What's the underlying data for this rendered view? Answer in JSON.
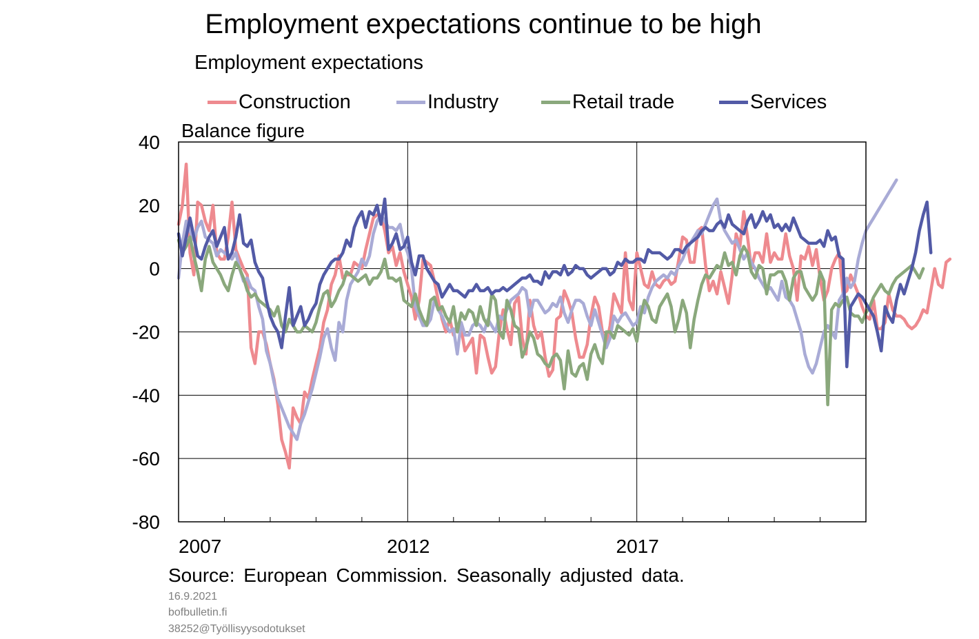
{
  "chart_data": {
    "type": "line",
    "title": "Employment expectations continue to be high",
    "subtitle": "Employment expectations",
    "ylabel": "Balance figure",
    "xlabel": "",
    "ylim": [
      -80,
      40
    ],
    "yticks": [
      40,
      20,
      0,
      -20,
      -40,
      -60,
      -80
    ],
    "xlim": [
      2007.0,
      2022.0
    ],
    "xticks_labeled": [
      {
        "value": 2007,
        "label": "2007"
      },
      {
        "value": 2012,
        "label": "2012"
      },
      {
        "value": 2017,
        "label": "2017"
      }
    ],
    "xticks_minor": [
      2008,
      2009,
      2010,
      2011,
      2013,
      2014,
      2015,
      2016,
      2018,
      2019,
      2020,
      2021
    ],
    "grid": {
      "horizontal": true,
      "vertical": true
    },
    "legend_position": "top",
    "frequency": "monthly",
    "x_start": "2007-01",
    "series": [
      {
        "name": "Construction",
        "color": "#ee8a8f",
        "values": [
          14,
          20,
          33,
          5,
          -2,
          21,
          20,
          15,
          12,
          20,
          5,
          3,
          3,
          10,
          21,
          6,
          3,
          0,
          -2,
          -25,
          -30,
          -20,
          -20,
          -24,
          -30,
          -35,
          -43,
          -54,
          -58,
          -63,
          -44,
          -47,
          -49,
          -39,
          -41,
          -35,
          -30,
          -25,
          -17,
          -13,
          -5,
          -2,
          4,
          -3,
          -2,
          -2,
          2,
          1,
          0,
          6,
          11,
          16,
          17,
          17,
          12,
          5,
          7,
          1,
          5,
          -1,
          -5,
          -9,
          -16,
          -10,
          3,
          2,
          1,
          -4,
          -10,
          -16,
          -20,
          -16,
          -21,
          -18,
          -19,
          -26,
          -24,
          -22,
          -33,
          -21,
          -22,
          -28,
          -33,
          -31,
          -20,
          -13,
          -19,
          -24,
          -11,
          -9,
          -22,
          -27,
          -10,
          -18,
          -22,
          -20,
          -28,
          -34,
          -32,
          -16,
          -15,
          -7,
          -10,
          -14,
          -22,
          -28,
          -28,
          -24,
          -15,
          -9,
          -12,
          -20,
          -24,
          -18,
          -8,
          -11,
          -14,
          5,
          -10,
          -13,
          5,
          0,
          -5,
          -6,
          -1,
          -5,
          -6,
          -4,
          -3,
          -5,
          -4,
          3,
          10,
          9,
          2,
          2,
          12,
          13,
          1,
          -7,
          -4,
          -8,
          -1,
          -6,
          -11,
          -2,
          11,
          7,
          18,
          10,
          0,
          5,
          5,
          2,
          11,
          2,
          5,
          3,
          3,
          11,
          4,
          0,
          -10,
          4,
          3,
          7,
          1,
          6,
          -3,
          -10,
          -7,
          0,
          3,
          5,
          -8,
          -7,
          -2,
          -5,
          -8,
          -12,
          -15,
          -16,
          -10,
          -19,
          -19,
          -17,
          -8,
          -13,
          -15,
          -15,
          -16,
          -18,
          -19,
          -18,
          -16,
          -13,
          -14,
          -7,
          0,
          -5,
          -6,
          2,
          3
        ]
      },
      {
        "name": "Industry",
        "color": "#a9abd6",
        "values": [
          -3,
          8,
          15,
          12,
          9,
          13,
          15,
          10,
          9,
          8,
          4,
          6,
          5,
          4,
          3,
          5,
          0,
          -4,
          -3,
          -6,
          -7,
          -12,
          -16,
          -26,
          -30,
          -36,
          -41,
          -44,
          -47,
          -50,
          -52,
          -54,
          -49,
          -46,
          -42,
          -38,
          -33,
          -28,
          -22,
          -19,
          -25,
          -29,
          -17,
          -20,
          -10,
          -5,
          -3,
          -1,
          3,
          1,
          4,
          11,
          15,
          17,
          15,
          13,
          13,
          12,
          14,
          8,
          5,
          0,
          -12,
          -15,
          -18,
          -18,
          -16,
          -10,
          -13,
          -15,
          -18,
          -20,
          -19,
          -27,
          -17,
          -21,
          -21,
          -18,
          -17,
          -18,
          -20,
          -16,
          -18,
          -20,
          -15,
          -16,
          -13,
          -10,
          -9,
          -8,
          -6,
          -7,
          -15,
          -10,
          -10,
          -12,
          -14,
          -13,
          -11,
          -12,
          -9,
          -14,
          -17,
          -13,
          -10,
          -10,
          -11,
          -15,
          -18,
          -13,
          -17,
          -21,
          -25,
          -22,
          -15,
          -17,
          -15,
          -14,
          -16,
          -18,
          -17,
          -12,
          -14,
          -9,
          -6,
          -4,
          -3,
          -2,
          -3,
          -1,
          -2,
          1,
          3,
          6,
          8,
          10,
          12,
          11,
          14,
          17,
          20,
          22,
          15,
          12,
          10,
          8,
          9,
          6,
          3,
          5,
          2,
          0,
          -3,
          -5,
          -7,
          -6,
          -8,
          -10,
          -4,
          -9,
          -10,
          -12,
          -16,
          -20,
          -27,
          -31,
          -33,
          -30,
          -25,
          -20,
          -18,
          -20,
          -22,
          -10,
          -8,
          -3,
          -6,
          -4,
          3,
          8,
          12,
          14,
          16,
          18,
          20,
          22,
          24,
          26,
          28
        ]
      },
      {
        "name": "Retail trade",
        "color": "#8aa87c",
        "values": [
          9,
          5,
          7,
          10,
          4,
          -1,
          -7,
          3,
          7,
          2,
          0,
          -2,
          -5,
          -7,
          -2,
          2,
          0,
          -3,
          -7,
          -9,
          -8,
          -10,
          -11,
          -12,
          -13,
          -15,
          -12,
          -18,
          -20,
          -16,
          -18,
          -20,
          -20,
          -18,
          -19,
          -20,
          -17,
          -12,
          -8,
          -7,
          -12,
          -10,
          -7,
          -5,
          -1,
          -2,
          -3,
          -4,
          -3,
          -2,
          -5,
          -3,
          -3,
          -1,
          3,
          -3,
          -3,
          -4,
          -3,
          -10,
          -11,
          -12,
          -8,
          -13,
          -16,
          -18,
          -10,
          -9,
          -13,
          -12,
          -15,
          -17,
          -12,
          -20,
          -14,
          -16,
          -13,
          -14,
          -18,
          -12,
          -16,
          -18,
          -8,
          -10,
          -20,
          -22,
          -10,
          -13,
          -18,
          -19,
          -28,
          -25,
          -20,
          -22,
          -27,
          -28,
          -30,
          -31,
          -28,
          -27,
          -29,
          -38,
          -26,
          -33,
          -34,
          -31,
          -30,
          -35,
          -27,
          -24,
          -28,
          -30,
          -20,
          -20,
          -22,
          -18,
          -19,
          -20,
          -21,
          -19,
          -23,
          -15,
          -10,
          -12,
          -16,
          -17,
          -12,
          -10,
          -8,
          -12,
          -20,
          -16,
          -10,
          -14,
          -25,
          -16,
          -10,
          -5,
          -2,
          -3,
          -1,
          1,
          0,
          5,
          1,
          2,
          -2,
          4,
          7,
          5,
          -1,
          -3,
          1,
          0,
          -8,
          -2,
          -2,
          -1,
          -1,
          -4,
          -10,
          -3,
          -1,
          -1,
          -6,
          -8,
          -10,
          -8,
          -1,
          -4,
          -43,
          -13,
          -11,
          -12,
          -10,
          -9,
          -14,
          -15,
          -15,
          -17,
          -14,
          -12,
          -9,
          -7,
          -5,
          -7,
          -8,
          -5,
          -3,
          -2,
          -1,
          0,
          1,
          -1,
          -3,
          0
        ]
      },
      {
        "name": "Services",
        "color": "#525aa6",
        "values": [
          11,
          4,
          10,
          16,
          10,
          4,
          3,
          7,
          10,
          12,
          7,
          10,
          13,
          3,
          5,
          10,
          17,
          8,
          7,
          9,
          2,
          -1,
          -3,
          -10,
          -15,
          -18,
          -20,
          -25,
          -15,
          -6,
          -18,
          -15,
          -12,
          -18,
          -16,
          -13,
          -11,
          -5,
          -2,
          0,
          2,
          3,
          3,
          5,
          9,
          7,
          13,
          16,
          18,
          13,
          18,
          17,
          20,
          14,
          22,
          6,
          8,
          11,
          6,
          7,
          10,
          2,
          -2,
          4,
          4,
          0,
          -2,
          -4,
          -5,
          -9,
          -7,
          -5,
          -7,
          -7,
          -8,
          -9,
          -7,
          -7,
          -5,
          -7,
          -7,
          -6,
          -8,
          -7,
          -7,
          -6,
          -7,
          -6,
          -5,
          -4,
          -3,
          -3,
          -2,
          -4,
          -4,
          -5,
          -1,
          -3,
          -1,
          -1,
          -2,
          1,
          -2,
          -1,
          1,
          0,
          0,
          -2,
          -3,
          -2,
          -1,
          0,
          0,
          -2,
          -1,
          2,
          1,
          3,
          2,
          2,
          3,
          3,
          2,
          6,
          5,
          5,
          5,
          4,
          3,
          4,
          6,
          6,
          5,
          7,
          8,
          9,
          10,
          12,
          13,
          12,
          12,
          14,
          15,
          13,
          17,
          14,
          13,
          12,
          11,
          15,
          17,
          13,
          15,
          18,
          15,
          17,
          13,
          14,
          12,
          14,
          12,
          16,
          13,
          10,
          9,
          8,
          8,
          8,
          9,
          7,
          12,
          9,
          10,
          4,
          3,
          -31,
          -12,
          -10,
          -8,
          -9,
          -11,
          -13,
          -15,
          -20,
          -26,
          -12,
          -15,
          -17,
          -10,
          -5,
          -8,
          -4,
          0,
          5,
          12,
          17,
          21,
          5
        ]
      }
    ],
    "source": "Source: European Commission. Seasonally adjusted data."
  },
  "footer": {
    "date": "16.9.2021",
    "site": "bofbulletin.fi",
    "code": "38252@Työllisyysodotukset"
  }
}
